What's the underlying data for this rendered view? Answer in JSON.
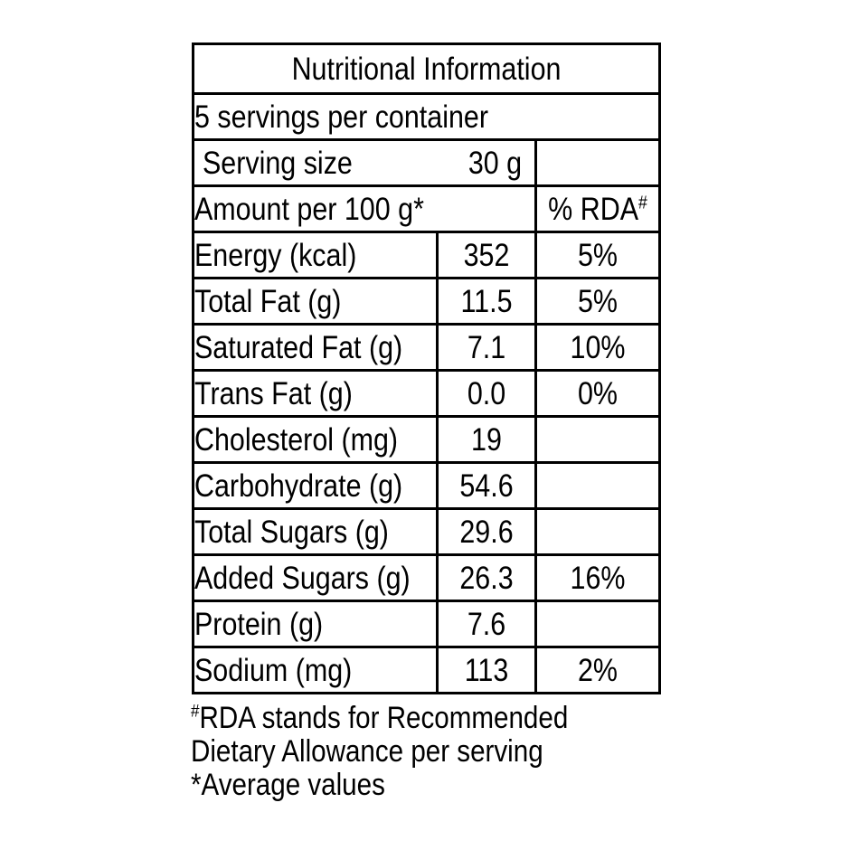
{
  "colors": {
    "text": "#000000",
    "background": "#ffffff",
    "border": "#000000"
  },
  "table": {
    "title": "Nutritional Information",
    "servings_line": "5 servings per container",
    "serving_size_label": "Serving size",
    "serving_size_value": "30 g",
    "amount_header": "Amount per 100 g*",
    "rda_header": "% RDA",
    "rda_header_sup": "#",
    "rows": [
      {
        "label": "Energy (kcal)",
        "value": "352",
        "rda": "5%"
      },
      {
        "label": "Total Fat (g)",
        "value": "11.5",
        "rda": "5%"
      },
      {
        "label": "Saturated Fat (g)",
        "value": "7.1",
        "rda": "10%"
      },
      {
        "label": "Trans Fat (g)",
        "value": "0.0",
        "rda": "0%"
      },
      {
        "label": "Cholesterol (mg)",
        "value": "19",
        "rda": ""
      },
      {
        "label": "Carbohydrate (g)",
        "value": "54.6",
        "rda": ""
      },
      {
        "label": "Total Sugars (g)",
        "value": "29.6",
        "rda": ""
      },
      {
        "label": "Added Sugars (g)",
        "value": "26.3",
        "rda": "16%"
      },
      {
        "label": "Protein (g)",
        "value": "7.6",
        "rda": ""
      },
      {
        "label": "Sodium (mg)",
        "value": "113",
        "rda": "2%"
      }
    ]
  },
  "footnotes": {
    "line1_sup": "#",
    "line1_text": "RDA stands for Recommended",
    "line2_text": "Dietary Allowance per serving",
    "line3_text": "*Average values"
  }
}
